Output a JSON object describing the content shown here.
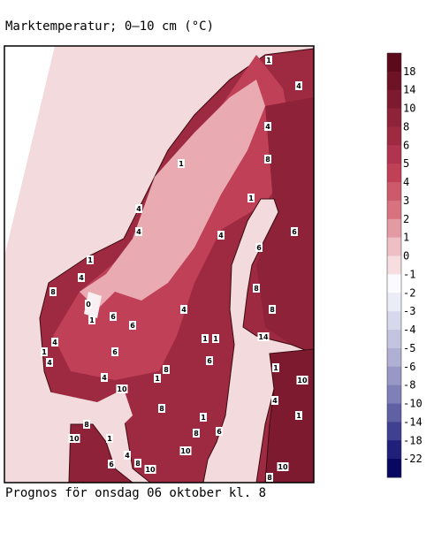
{
  "title": "Marktemperatur; 0–10 cm (°C)",
  "footer": "Prognos för onsdag 06 oktober kl. 8",
  "legend": {
    "labels": [
      18,
      14,
      10,
      8,
      6,
      5,
      4,
      3,
      2,
      1,
      0,
      -1,
      -2,
      -3,
      -4,
      -5,
      -6,
      -8,
      -10,
      -14,
      -18,
      -22
    ],
    "colors": [
      "#5a0a1a",
      "#6e1226",
      "#7e1a30",
      "#8e2238",
      "#9e2a42",
      "#b03450",
      "#c04058",
      "#cc5a6a",
      "#d8727f",
      "#e39aa3",
      "#eec0c5",
      "#f6dde0",
      "#fbfbff",
      "#ececf6",
      "#d8d8ec",
      "#c4c4e0",
      "#b0b0d4",
      "#9898c6",
      "#8080b8",
      "#6060a4",
      "#404090",
      "#20207a",
      "#080860"
    ]
  },
  "map_labels": [
    "1",
    "4",
    "4",
    "8",
    "1",
    "1",
    "4",
    "4",
    "4",
    "6",
    "6",
    "1",
    "4",
    "8",
    "8",
    "4",
    "0",
    "1",
    "6",
    "6",
    "8",
    "4",
    "1",
    "1",
    "14",
    "1",
    "4",
    "6",
    "6",
    "8",
    "1",
    "4",
    "1",
    "10",
    "10",
    "4",
    "8",
    "1",
    "8",
    "1",
    "8",
    "6",
    "10",
    "1",
    "10",
    "6",
    "4",
    "8",
    "10",
    "10",
    "8"
  ]
}
